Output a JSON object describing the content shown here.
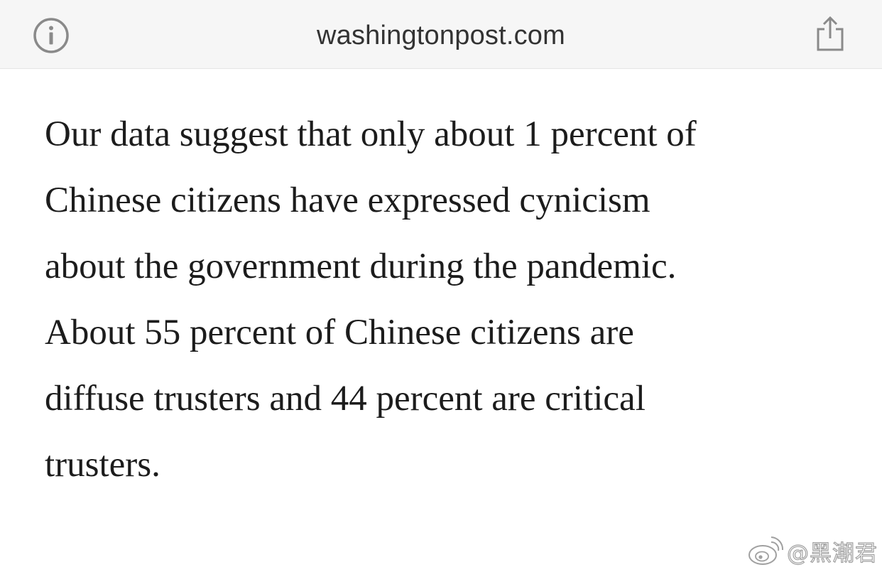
{
  "browser": {
    "url": "washingtonpost.com",
    "info_icon": "info-circle-icon",
    "share_icon": "share-icon"
  },
  "article": {
    "lines": [
      "Our data suggest that only about 1 percent of",
      "Chinese citizens have expressed cynicism",
      "about the government during the pandemic.",
      "About 55 percent of Chinese citizens are",
      "diffuse trusters and 44 percent are critical",
      "trusters."
    ]
  },
  "watermark": {
    "icon": "weibo-logo",
    "text": "@黑潮君"
  }
}
